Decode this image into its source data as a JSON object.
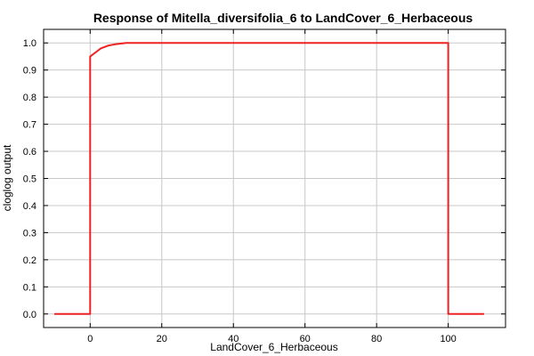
{
  "chart_data": {
    "type": "line",
    "title": "Response of Mitella_diversifolia_6 to LandCover_6_Herbaceous",
    "xlabel": "LandCover_6_Herbaceous",
    "ylabel": "cloglog output",
    "xlim": [
      -13,
      116
    ],
    "ylim": [
      -0.05,
      1.05
    ],
    "xticks": [
      0,
      20,
      40,
      60,
      80,
      100
    ],
    "yticks": [
      0.0,
      0.1,
      0.2,
      0.3,
      0.4,
      0.5,
      0.6,
      0.7,
      0.8,
      0.9,
      1.0
    ],
    "xtick_labels": [
      "0",
      "20",
      "40",
      "60",
      "80",
      "100"
    ],
    "ytick_labels": [
      "0.0",
      "0.1",
      "0.2",
      "0.3",
      "0.4",
      "0.5",
      "0.6",
      "0.7",
      "0.8",
      "0.9",
      "1.0"
    ],
    "grid": true,
    "series": [
      {
        "color": "#ee2222",
        "x": [
          -10,
          0,
          0,
          1,
          2,
          3,
          5,
          7,
          10,
          20,
          40,
          60,
          80,
          100,
          100,
          110
        ],
        "y": [
          0,
          0,
          0.95,
          0.96,
          0.97,
          0.98,
          0.99,
          0.995,
          1.0,
          1.0,
          1.0,
          1.0,
          1.0,
          1.0,
          0,
          0
        ]
      }
    ]
  }
}
